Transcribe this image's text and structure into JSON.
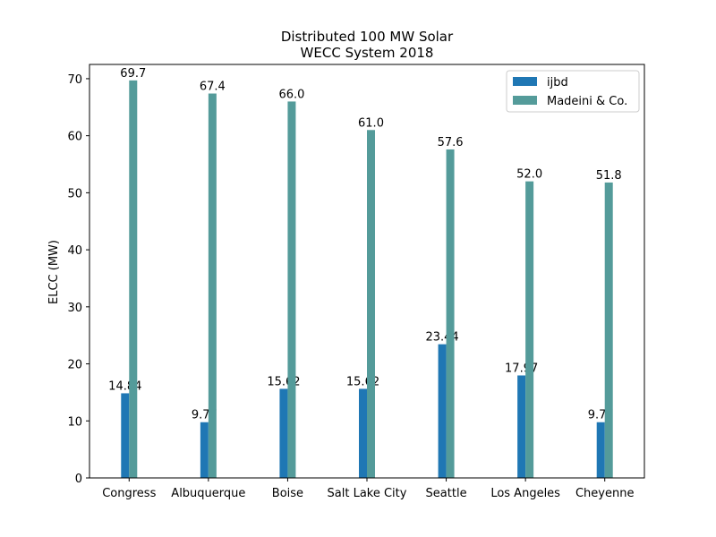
{
  "chart_data": {
    "type": "bar",
    "title_lines": [
      "Distributed 100 MW Solar",
      "WECC System 2018"
    ],
    "xlabel": "",
    "ylabel": "ELCC (MW)",
    "ylim": [
      0,
      72.5
    ],
    "yticks": [
      0,
      10,
      20,
      30,
      40,
      50,
      60,
      70
    ],
    "categories": [
      "Congress",
      "Albuquerque",
      "Boise",
      "Salt Lake City",
      "Seattle",
      "Los Angeles",
      "Cheyenne"
    ],
    "series": [
      {
        "name": "ijbd",
        "color": "#1f77b4",
        "values": [
          14.84,
          9.77,
          15.62,
          15.62,
          23.44,
          17.97,
          9.77
        ],
        "labels": [
          "14.84",
          "9.77",
          "15.62",
          "15.62",
          "23.44",
          "17.97",
          "9.77"
        ]
      },
      {
        "name": "Madeini & Co.",
        "color": "#549b9a",
        "values": [
          69.7,
          67.4,
          66.0,
          61.0,
          57.6,
          52.0,
          51.8
        ],
        "labels": [
          "69.7",
          "67.4",
          "66.0",
          "61.0",
          "57.6",
          "52.0",
          "51.8"
        ]
      }
    ],
    "legend": "top-right",
    "grid": false
  }
}
